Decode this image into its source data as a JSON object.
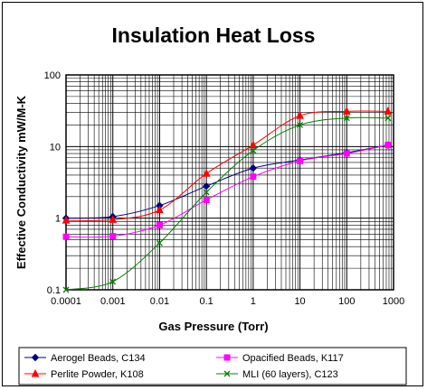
{
  "chart_data": {
    "type": "line",
    "title": "Insulation Heat Loss",
    "xlabel": "Gas Pressure (Torr)",
    "ylabel": "Effective Conductivity mW/M-K",
    "xscale": "log",
    "yscale": "log",
    "xlim": [
      0.0001,
      1000
    ],
    "ylim": [
      0.1,
      100
    ],
    "x_ticks": [
      "0.0001",
      "0.001",
      "0.01",
      "0.1",
      "1",
      "10",
      "100",
      "1000"
    ],
    "y_ticks": [
      "0.1",
      "1",
      "10",
      "100"
    ],
    "grid": true,
    "legend_position": "bottom",
    "series": [
      {
        "name": "Aerogel Beads, C134",
        "color": "#000080",
        "marker": "diamond",
        "x": [
          0.0001,
          0.001,
          0.01,
          0.1,
          1,
          10,
          100,
          760
        ],
        "y": [
          1.0,
          1.05,
          1.5,
          2.8,
          5.0,
          6.5,
          8.2,
          10.5
        ]
      },
      {
        "name": "Opacified Beads, K117",
        "color": "#ff00ff",
        "marker": "square",
        "x": [
          0.0001,
          0.001,
          0.01,
          0.1,
          1,
          10,
          100,
          760
        ],
        "y": [
          0.55,
          0.56,
          0.8,
          1.8,
          3.8,
          6.3,
          8.0,
          10.5
        ]
      },
      {
        "name": "Perlite Powder, K108",
        "color": "#ff0000",
        "marker": "triangle",
        "x": [
          0.0001,
          0.001,
          0.01,
          0.1,
          1,
          10,
          100,
          760
        ],
        "y": [
          0.93,
          0.95,
          1.3,
          4.2,
          10.5,
          27,
          31,
          31
        ]
      },
      {
        "name": "MLI (60 layers), C123",
        "color": "#008000",
        "marker": "x",
        "x": [
          0.0001,
          0.001,
          0.01,
          0.1,
          1,
          10,
          100,
          760
        ],
        "y": [
          0.1,
          0.13,
          0.45,
          2.3,
          8.8,
          20,
          25,
          25
        ]
      }
    ]
  }
}
